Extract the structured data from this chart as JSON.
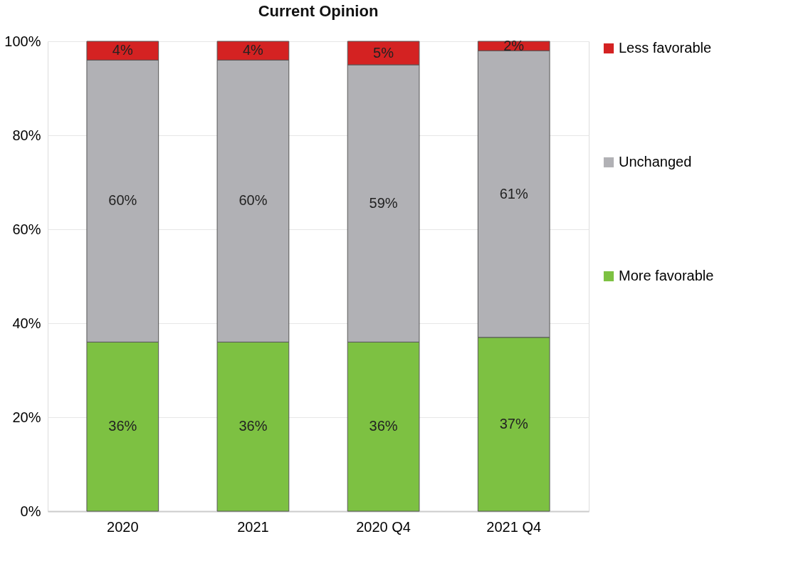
{
  "chart_data": {
    "type": "bar",
    "title": "Current Opinion",
    "stacked": true,
    "categories": [
      "2020",
      "2021",
      "2020 Q4",
      "2021 Q4"
    ],
    "series": [
      {
        "name": "More favorable",
        "color": "#7dc142",
        "values": [
          36,
          36,
          36,
          37
        ],
        "value_labels": [
          "36%",
          "36%",
          "36%",
          "37%"
        ]
      },
      {
        "name": "Unchanged",
        "color": "#b1b1b5",
        "values": [
          60,
          60,
          59,
          61
        ],
        "value_labels": [
          "60%",
          "60%",
          "59%",
          "61%"
        ]
      },
      {
        "name": "Less favorable",
        "color": "#d42222",
        "values": [
          4,
          4,
          5,
          2
        ],
        "value_labels": [
          "4%",
          "4%",
          "5%",
          "2%"
        ]
      }
    ],
    "ylim": [
      0,
      100
    ],
    "yticks": [
      {
        "value": 0,
        "label": "0%"
      },
      {
        "value": 20,
        "label": "20%"
      },
      {
        "value": 40,
        "label": "40%"
      },
      {
        "value": 60,
        "label": "60%"
      },
      {
        "value": 80,
        "label": "80%"
      },
      {
        "value": 100,
        "label": "100%"
      }
    ],
    "grid": "y",
    "legend": "right"
  }
}
